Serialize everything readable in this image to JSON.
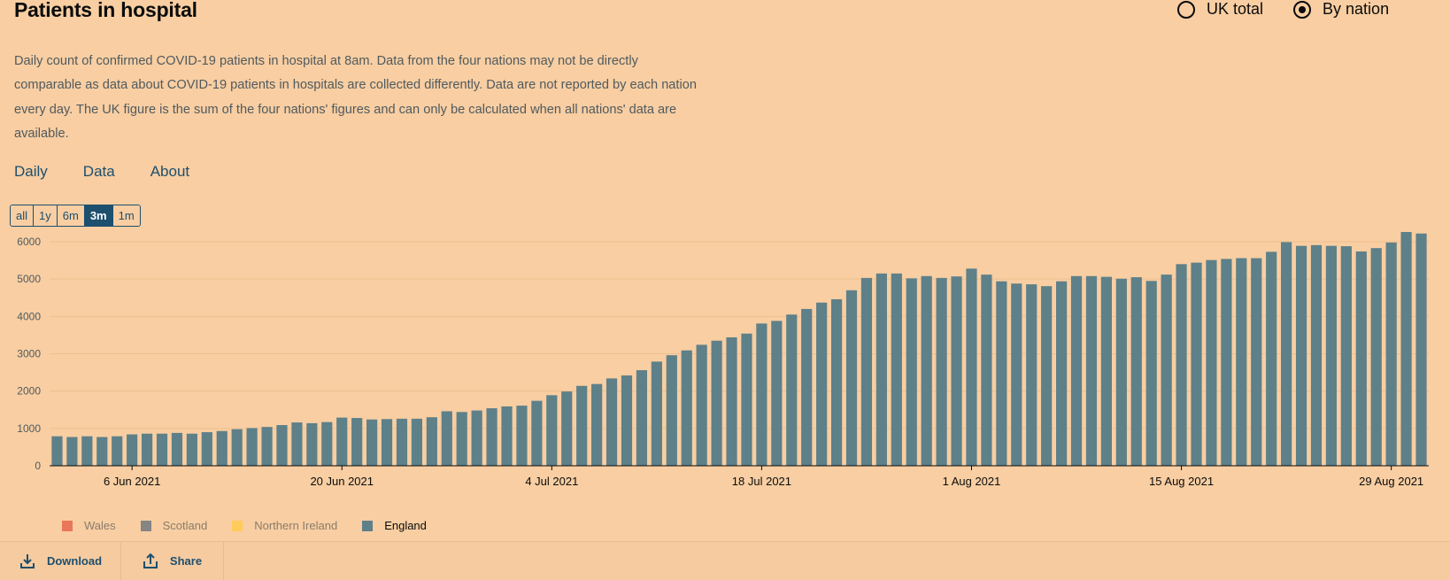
{
  "title": "Patients in hospital",
  "radio": {
    "uk_total": "UK total",
    "by_nation": "By nation",
    "selected": "by_nation"
  },
  "description": "Daily count of confirmed COVID-19 patients in hospital at 8am. Data from the four nations may not be directly comparable as data about COVID-19 patients in hospitals are collected differently. Data are not reported by each nation every day. The UK figure is the sum of the four nations' figures and can only be calculated when all nations' data are available.",
  "tabs": [
    {
      "label": "Daily",
      "active": true
    },
    {
      "label": "Data",
      "active": false
    },
    {
      "label": "About",
      "active": false
    }
  ],
  "ranges": [
    {
      "label": "all"
    },
    {
      "label": "1y"
    },
    {
      "label": "6m"
    },
    {
      "label": "3m",
      "active": true
    },
    {
      "label": "1m"
    }
  ],
  "footer": {
    "download": "Download",
    "share": "Share"
  },
  "colors": {
    "england": "#5e8089",
    "wales": "#e9775a",
    "scotland": "#858585",
    "northern_ireland": "#ffcb5a",
    "accent": "#1d4f6e"
  },
  "legend": [
    {
      "label": "Wales",
      "color": "#e9775a",
      "active": false
    },
    {
      "label": "Scotland",
      "color": "#858585",
      "active": false
    },
    {
      "label": "Northern Ireland",
      "color": "#ffcb5a",
      "active": false
    },
    {
      "label": "England",
      "color": "#5e8089",
      "active": true
    }
  ],
  "chart_data": {
    "type": "bar",
    "title": "Patients in hospital",
    "xlabel": "",
    "ylabel": "",
    "ylim": [
      0,
      6500
    ],
    "yticks": [
      0,
      1000,
      2000,
      3000,
      4000,
      5000,
      6000
    ],
    "start_date": "2021-06-01",
    "x_tick_labels": [
      {
        "label": "6 Jun 2021",
        "index": 5
      },
      {
        "label": "20 Jun 2021",
        "index": 19
      },
      {
        "label": "4 Jul 2021",
        "index": 33
      },
      {
        "label": "18 Jul 2021",
        "index": 47
      },
      {
        "label": "1 Aug 2021",
        "index": 61
      },
      {
        "label": "15 Aug 2021",
        "index": 75
      },
      {
        "label": "29 Aug 2021",
        "index": 89
      }
    ],
    "series": [
      {
        "name": "England",
        "values": [
          790,
          770,
          790,
          770,
          790,
          840,
          860,
          860,
          880,
          860,
          900,
          930,
          980,
          1010,
          1040,
          1090,
          1160,
          1140,
          1170,
          1290,
          1280,
          1240,
          1250,
          1260,
          1260,
          1300,
          1460,
          1440,
          1480,
          1540,
          1590,
          1610,
          1740,
          1890,
          1990,
          2140,
          2190,
          2340,
          2420,
          2560,
          2790,
          2960,
          3090,
          3240,
          3350,
          3440,
          3540,
          3810,
          3880,
          4050,
          4200,
          4370,
          4460,
          4700,
          5030,
          5150,
          5150,
          5020,
          5080,
          5030,
          5070,
          5280,
          5120,
          4940,
          4880,
          4860,
          4810,
          4940,
          5080,
          5080,
          5060,
          5010,
          5050,
          4950,
          5120,
          5400,
          5440,
          5510,
          5540,
          5560,
          5560,
          5730,
          5990,
          5890,
          5910,
          5890,
          5880,
          5740,
          5830,
          5980,
          6300,
          6220
        ]
      }
    ]
  }
}
